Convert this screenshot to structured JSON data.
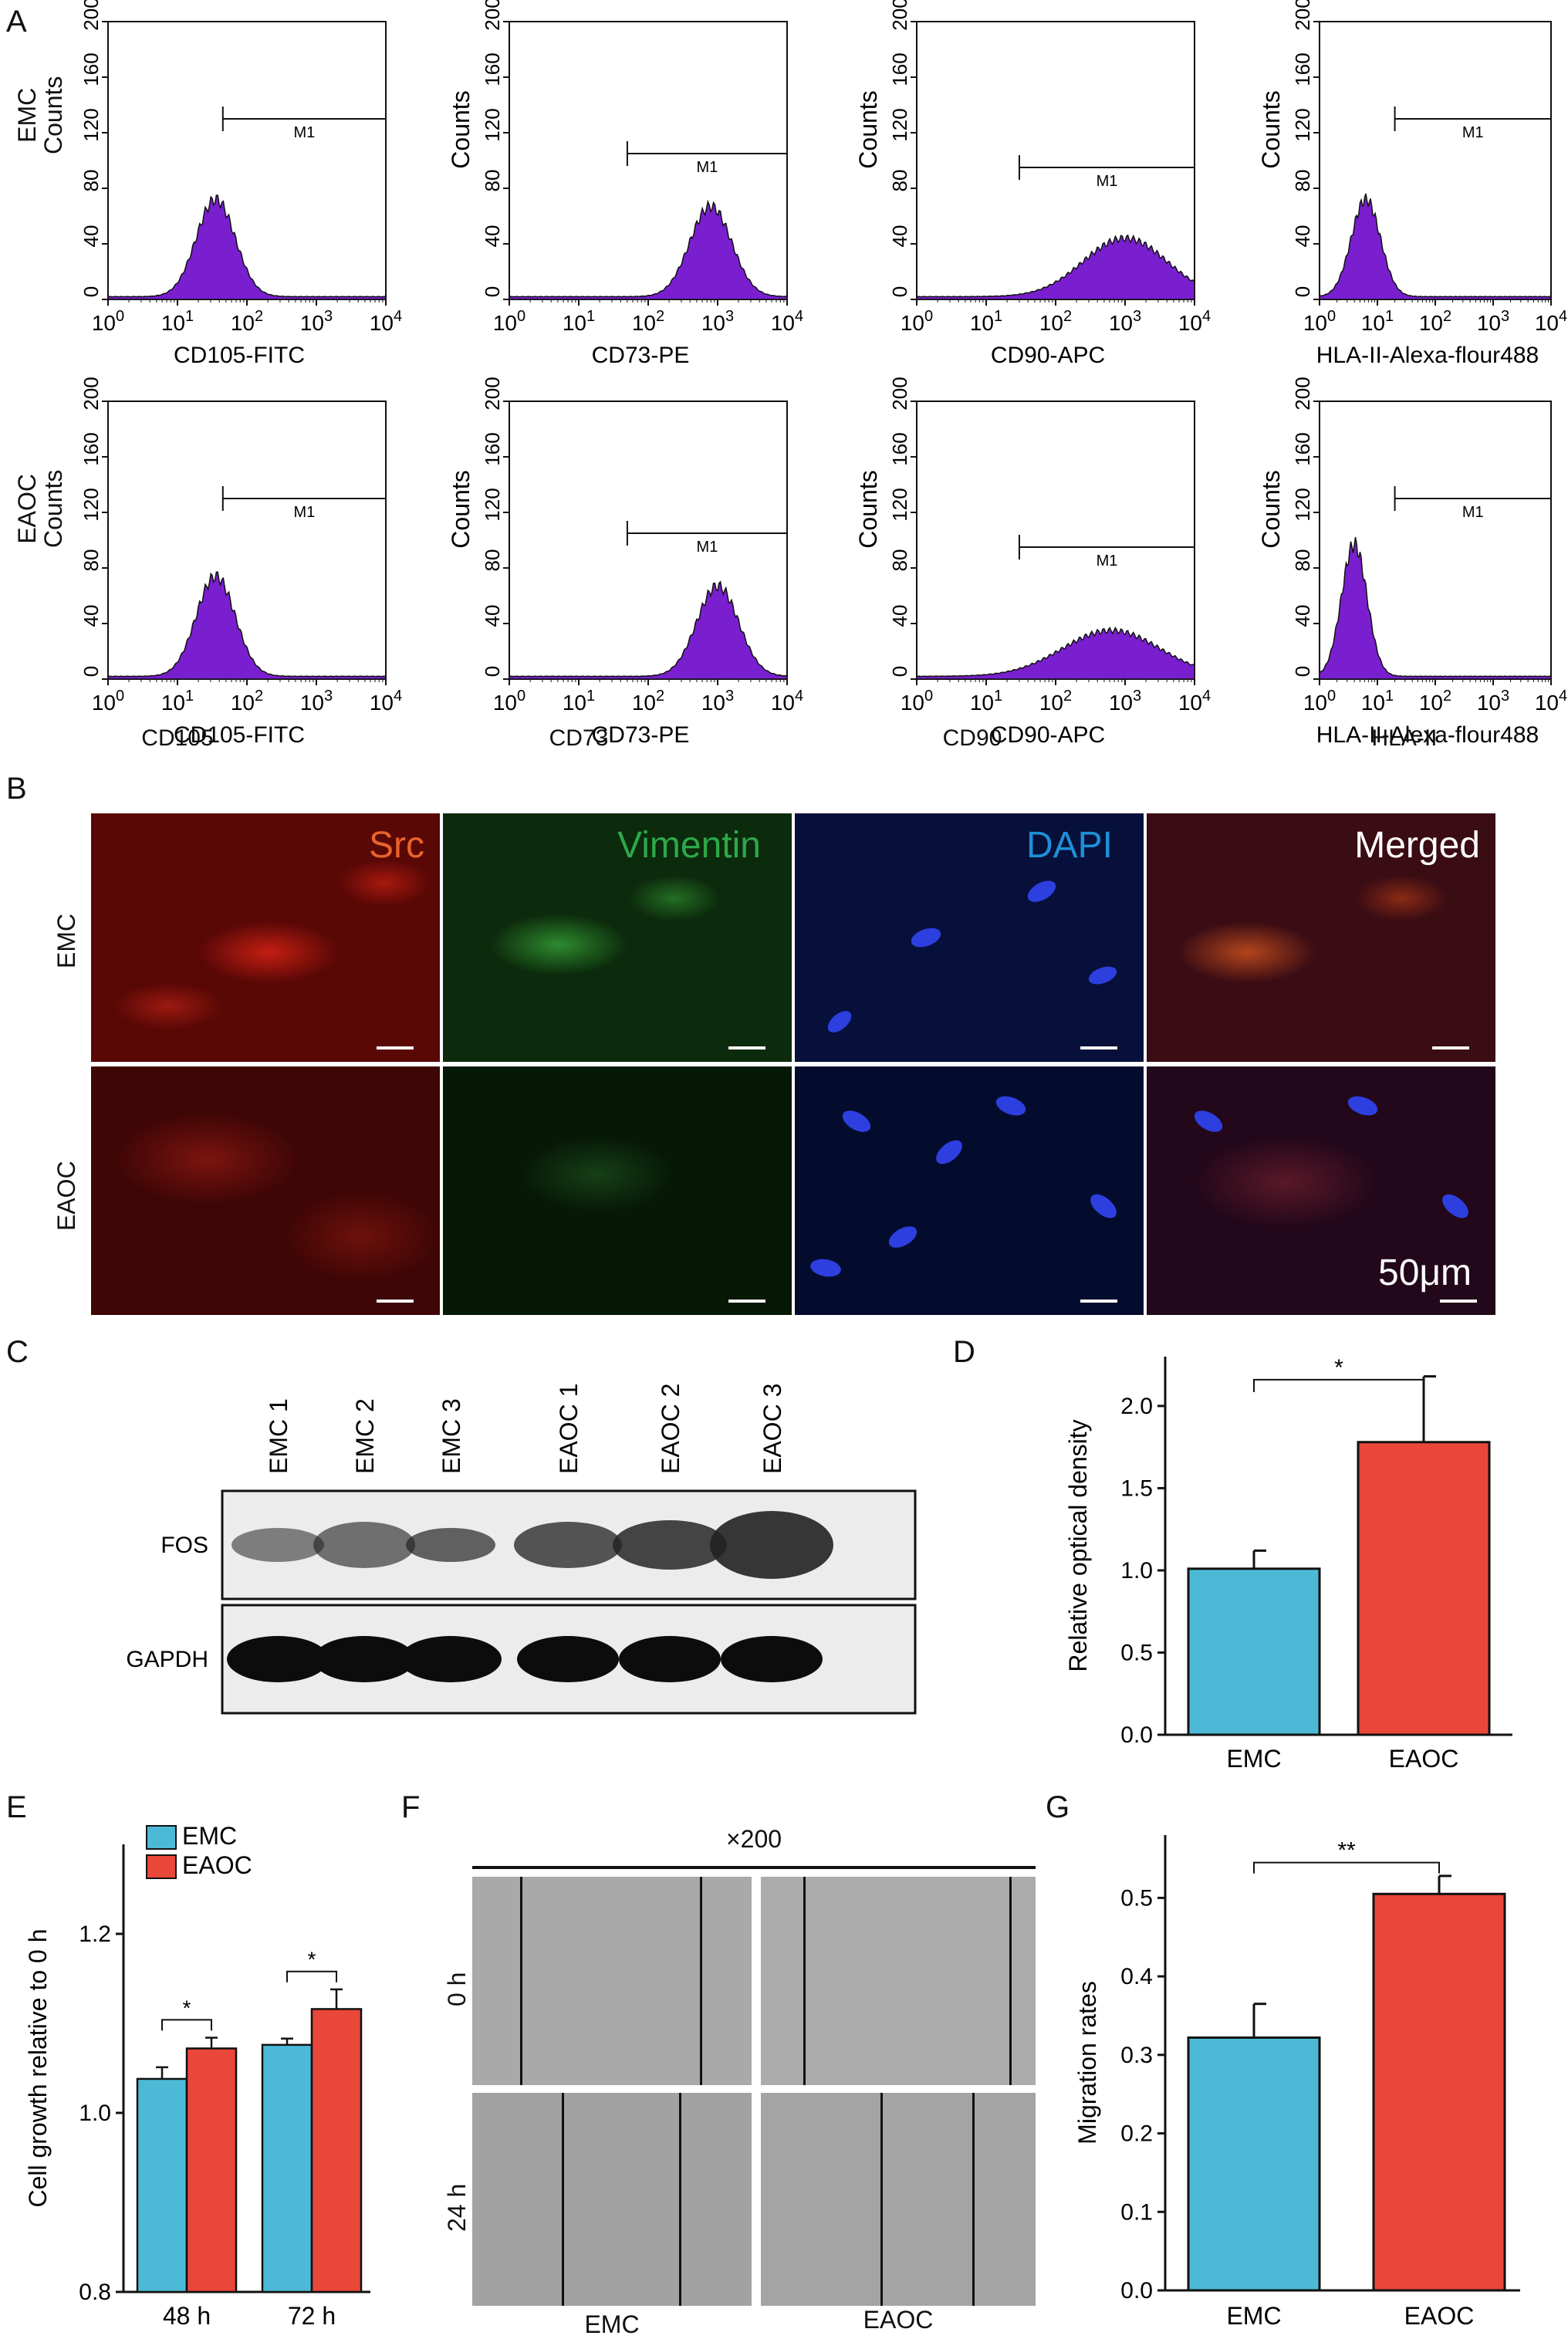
{
  "panels": {
    "A": "A",
    "B": "B",
    "C": "C",
    "D": "D",
    "E": "E",
    "F": "F",
    "G": "G"
  },
  "panel_a": {
    "row_labels": [
      {
        "line1": "EMC",
        "line2": "Counts"
      },
      {
        "line1": "EAOC",
        "line2": "Counts"
      }
    ],
    "col_ylabel": "Counts",
    "gate_label": "M1",
    "bottom_labels": [
      "CD105",
      "CD73",
      "CD90",
      "HLA-II"
    ]
  },
  "panel_b": {
    "channels": [
      "Src",
      "Vimentin",
      "DAPI",
      "Merged"
    ],
    "channel_colors": [
      "#e8632a",
      "#2ea84a",
      "#1e8fd6",
      "#ffffff"
    ],
    "rows": [
      "EMC",
      "EAOC"
    ],
    "scale_bar": "50μm"
  },
  "panel_c": {
    "lanes": [
      "EMC 1",
      "EMC 2",
      "EMC 3",
      "EAOC 1",
      "EAOC 2",
      "EAOC 3"
    ],
    "rows": [
      "FOS",
      "GAPDH"
    ]
  },
  "panel_f": {
    "magnification": "×200",
    "rows": [
      "0 h",
      "24 h"
    ],
    "cols": [
      "EMC",
      "EAOC"
    ]
  },
  "chart_data": [
    {
      "id": "A1",
      "type": "area",
      "panel": "A",
      "xlabel": "CD105-FITC",
      "ylabel": "Counts",
      "xscale": "log",
      "xlim": [
        1,
        10000
      ],
      "ylim": [
        0,
        200
      ],
      "xticks": [
        "10^0",
        "10^1",
        "10^2",
        "10^3",
        "10^4"
      ],
      "yticks": [
        0,
        40,
        80,
        120,
        160,
        200
      ],
      "peak_log": 1.55,
      "peak_height": 70,
      "width_log": 0.28,
      "gate": {
        "label": "M1",
        "range": [
          45,
          10000
        ]
      }
    },
    {
      "id": "A2",
      "type": "area",
      "panel": "A",
      "xlabel": "CD73-PE",
      "ylabel": "Counts",
      "xscale": "log",
      "xlim": [
        1,
        10000
      ],
      "ylim": [
        0,
        200
      ],
      "xticks": [
        "10^0",
        "10^1",
        "10^2",
        "10^3",
        "10^4"
      ],
      "yticks": [
        0,
        40,
        80,
        120,
        160,
        200
      ],
      "peak_log": 2.9,
      "peak_height": 65,
      "width_log": 0.3,
      "gate": {
        "label": "M1",
        "range": [
          50,
          10000
        ]
      }
    },
    {
      "id": "A3",
      "type": "area",
      "panel": "A",
      "xlabel": "CD90-APC",
      "ylabel": "Counts",
      "xscale": "log",
      "xlim": [
        1,
        10000
      ],
      "ylim": [
        0,
        200
      ],
      "xticks": [
        "10^0",
        "10^1",
        "10^2",
        "10^3",
        "10^4"
      ],
      "yticks": [
        0,
        40,
        80,
        120,
        160,
        200
      ],
      "peak_log": 3.0,
      "peak_height": 42,
      "width_log": 0.6,
      "gate": {
        "label": "M1",
        "range": [
          30,
          10000
        ]
      }
    },
    {
      "id": "A4",
      "type": "area",
      "panel": "A",
      "xlabel": "HLA-II-Alexa-flour488",
      "ylabel": "Counts",
      "xscale": "log",
      "xlim": [
        1,
        10000
      ],
      "ylim": [
        0,
        200
      ],
      "xticks": [
        "10^0",
        "10^1",
        "10^2",
        "10^3",
        "10^4"
      ],
      "yticks": [
        0,
        40,
        80,
        120,
        160,
        200
      ],
      "peak_log": 0.8,
      "peak_height": 70,
      "width_log": 0.25,
      "gate": {
        "label": "M1",
        "range": [
          20,
          10000
        ]
      }
    },
    {
      "id": "A5",
      "type": "area",
      "panel": "A",
      "xlabel": "CD105-FITC",
      "ylabel": "Counts",
      "xscale": "log",
      "xlim": [
        1,
        10000
      ],
      "ylim": [
        0,
        200
      ],
      "xticks": [
        "10^0",
        "10^1",
        "10^2",
        "10^3",
        "10^4"
      ],
      "yticks": [
        0,
        40,
        80,
        120,
        160,
        200
      ],
      "peak_log": 1.55,
      "peak_height": 72,
      "width_log": 0.28,
      "gate": {
        "label": "M1",
        "range": [
          45,
          10000
        ]
      }
    },
    {
      "id": "A6",
      "type": "area",
      "panel": "A",
      "xlabel": "CD73-PE",
      "ylabel": "Counts",
      "xscale": "log",
      "xlim": [
        1,
        10000
      ],
      "ylim": [
        0,
        200
      ],
      "xticks": [
        "10^0",
        "10^1",
        "10^2",
        "10^3",
        "10^4"
      ],
      "yticks": [
        0,
        40,
        80,
        120,
        160,
        200
      ],
      "peak_log": 3.0,
      "peak_height": 65,
      "width_log": 0.3,
      "gate": {
        "label": "M1",
        "range": [
          50,
          10000
        ]
      }
    },
    {
      "id": "A7",
      "type": "area",
      "panel": "A",
      "xlabel": "CD90-APC",
      "ylabel": "Counts",
      "xscale": "log",
      "xlim": [
        1,
        10000
      ],
      "ylim": [
        0,
        200
      ],
      "xticks": [
        "10^0",
        "10^1",
        "10^2",
        "10^3",
        "10^4"
      ],
      "yticks": [
        0,
        40,
        80,
        120,
        160,
        200
      ],
      "peak_log": 2.8,
      "peak_height": 33,
      "width_log": 0.7,
      "gate": {
        "label": "M1",
        "range": [
          30,
          10000
        ]
      }
    },
    {
      "id": "A8",
      "type": "area",
      "panel": "A",
      "xlabel": "HLA-II-Alexa-flour488",
      "ylabel": "Counts",
      "xscale": "log",
      "xlim": [
        1,
        10000
      ],
      "ylim": [
        0,
        200
      ],
      "xticks": [
        "10^0",
        "10^1",
        "10^2",
        "10^3",
        "10^4"
      ],
      "yticks": [
        0,
        40,
        80,
        120,
        160,
        200
      ],
      "peak_log": 0.6,
      "peak_height": 95,
      "width_log": 0.22,
      "gate": {
        "label": "M1",
        "range": [
          20,
          10000
        ]
      }
    },
    {
      "id": "D",
      "type": "bar",
      "panel": "D",
      "categories": [
        "EMC",
        "EAOC"
      ],
      "values": [
        1.01,
        1.78
      ],
      "errors": [
        0.11,
        0.4
      ],
      "ylabel": "Relative optical density",
      "ylim": [
        0,
        2.3
      ],
      "yticks": [
        "0.0",
        "0.5",
        "1.0",
        "1.5",
        "2.0"
      ],
      "colors": [
        "#4cbad6",
        "#e8473a"
      ],
      "significance": "*"
    },
    {
      "id": "E",
      "type": "bar",
      "panel": "E",
      "categories": [
        "48 h",
        "72 h"
      ],
      "series": [
        {
          "name": "EMC",
          "values": [
            1.038,
            1.076
          ],
          "errors": [
            0.013,
            0.007
          ],
          "color": "#4cbad6"
        },
        {
          "name": "EAOC",
          "values": [
            1.072,
            1.116
          ],
          "errors": [
            0.012,
            0.022
          ],
          "color": "#e8473a"
        }
      ],
      "ylabel": "Cell growth relative to 0 h",
      "ylim": [
        0.8,
        1.3
      ],
      "yticks": [
        "0.8",
        "1.0",
        "1.2"
      ],
      "legend": "top-left",
      "significance": [
        "*",
        "*"
      ]
    },
    {
      "id": "G",
      "type": "bar",
      "panel": "G",
      "categories": [
        "EMC",
        "EAOC"
      ],
      "values": [
        0.322,
        0.505
      ],
      "errors": [
        0.043,
        0.023
      ],
      "ylabel": "Migration rates",
      "ylim": [
        0,
        0.58
      ],
      "yticks": [
        "0.0",
        "0.1",
        "0.2",
        "0.3",
        "0.4",
        "0.5"
      ],
      "colors": [
        "#4cbad6",
        "#e8473a"
      ],
      "significance": "**"
    }
  ]
}
